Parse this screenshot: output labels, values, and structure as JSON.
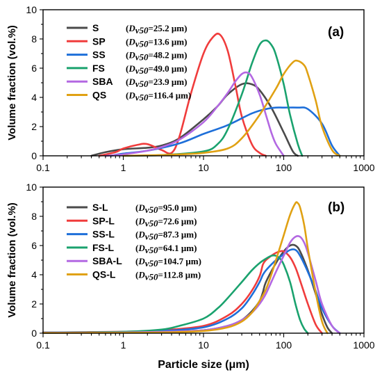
{
  "chart_data": [
    {
      "type": "line",
      "panel_label": "(a)",
      "xscale": "log",
      "xlim": [
        0.1,
        1000
      ],
      "ylim": [
        0,
        10
      ],
      "xticks": [
        "0.1",
        "1",
        "10",
        "100",
        "1000"
      ],
      "yticks": [
        "0",
        "2",
        "4",
        "6",
        "8",
        "10"
      ],
      "ylabel": "Volume fraction (vol.%)",
      "xlabel": "",
      "legend_position": "top-left",
      "series": [
        {
          "name": "S",
          "d50_label": "D",
          "d50_sub": "v50",
          "d50_value": "=25.2 μm",
          "color": "#4a4a4a",
          "x": [
            0.4,
            0.6,
            1,
            2,
            3,
            5,
            10,
            15,
            20,
            30,
            40,
            50,
            70,
            100,
            130,
            150
          ],
          "y": [
            0,
            0.25,
            0.45,
            0.55,
            0.7,
            1.2,
            2.5,
            3.4,
            4.2,
            4.9,
            4.9,
            4.5,
            3.3,
            1.6,
            0.3,
            0
          ]
        },
        {
          "name": "SP",
          "d50_label": "D",
          "d50_sub": "v50",
          "d50_value": "=13.6 μm",
          "color": "#f03c3c",
          "x": [
            0.5,
            0.8,
            1,
            1.5,
            2,
            3,
            4,
            5,
            7,
            10,
            13,
            16,
            20,
            25,
            30,
            40,
            50,
            60
          ],
          "y": [
            0,
            0.25,
            0.5,
            0.75,
            0.8,
            0.4,
            0.2,
            1.3,
            4.3,
            7.0,
            8.1,
            8.3,
            7.2,
            4.8,
            2.7,
            0.8,
            0.2,
            0
          ]
        },
        {
          "name": "SS",
          "d50_label": "D",
          "d50_sub": "v50",
          "d50_value": "=48.2 μm",
          "color": "#1e6fd9",
          "x": [
            0.7,
            1,
            2,
            5,
            10,
            20,
            40,
            60,
            80,
            100,
            150,
            200,
            300,
            400,
            500
          ],
          "y": [
            0,
            0.15,
            0.35,
            0.85,
            1.5,
            2.1,
            2.9,
            3.2,
            3.3,
            3.3,
            3.3,
            3.2,
            2.2,
            0.7,
            0
          ]
        },
        {
          "name": "FS",
          "d50_label": "D",
          "d50_sub": "v50",
          "d50_value": "=49.0 μm",
          "color": "#1aa26e",
          "x": [
            1,
            3,
            10,
            15,
            20,
            30,
            40,
            50,
            60,
            70,
            80,
            100,
            120,
            150,
            170
          ],
          "y": [
            0,
            0.05,
            0.3,
            0.8,
            1.8,
            4.2,
            6.3,
            7.6,
            7.9,
            7.6,
            6.9,
            4.9,
            2.8,
            0.8,
            0
          ]
        },
        {
          "name": "SBA",
          "d50_label": "D",
          "d50_sub": "v50",
          "d50_value": "=23.9 μm",
          "color": "#b368e2",
          "x": [
            0.6,
            1,
            2,
            3,
            5,
            10,
            15,
            20,
            25,
            30,
            35,
            40,
            50,
            60,
            70,
            80,
            100
          ],
          "y": [
            0,
            0.1,
            0.35,
            0.6,
            1.1,
            2.3,
            3.4,
            4.3,
            5.1,
            5.6,
            5.7,
            5.4,
            4.2,
            2.8,
            1.6,
            0.8,
            0
          ]
        },
        {
          "name": "QS",
          "d50_label": "D",
          "d50_sub": "v50",
          "d50_value": "=116.4 μm",
          "color": "#e0a113",
          "x": [
            1,
            3,
            5,
            10,
            20,
            30,
            50,
            80,
            100,
            130,
            150,
            180,
            200,
            250,
            300,
            400,
            500
          ],
          "y": [
            0,
            0.05,
            0.1,
            0.2,
            0.5,
            1.2,
            2.8,
            4.6,
            5.6,
            6.4,
            6.5,
            6.2,
            5.6,
            3.8,
            2.0,
            0.4,
            0
          ]
        }
      ]
    },
    {
      "type": "line",
      "panel_label": "(b)",
      "xscale": "log",
      "xlim": [
        0.1,
        1000
      ],
      "ylim": [
        0,
        10
      ],
      "xticks": [
        "0.1",
        "1",
        "10",
        "100",
        "1000"
      ],
      "yticks": [
        "0",
        "2",
        "4",
        "6",
        "8",
        "10"
      ],
      "ylabel": "Volume fraction (vol.%)",
      "xlabel": "Particle size (μm)",
      "legend_position": "top-left",
      "series": [
        {
          "name": "S-L",
          "d50_label": "D",
          "d50_sub": "v50",
          "d50_value": "=95.0 μm",
          "color": "#4a4a4a",
          "x": [
            0.1,
            1,
            3,
            10,
            20,
            30,
            40,
            50,
            55,
            60,
            80,
            100,
            120,
            140,
            160,
            200,
            250,
            300,
            350,
            400
          ],
          "y": [
            0.05,
            0.08,
            0.1,
            0.2,
            0.5,
            0.9,
            1.5,
            2.2,
            2.8,
            3.5,
            4.8,
            5.6,
            6.0,
            6.0,
            5.6,
            4.3,
            2.7,
            1.3,
            0.4,
            0
          ]
        },
        {
          "name": "SP-L",
          "d50_label": "D",
          "d50_sub": "v50",
          "d50_value": "=72.6 μm",
          "color": "#f03c3c",
          "x": [
            0.1,
            1,
            3,
            10,
            20,
            30,
            40,
            50,
            55,
            60,
            70,
            80,
            90,
            100,
            120,
            140,
            160,
            200,
            250,
            300
          ],
          "y": [
            0.05,
            0.1,
            0.2,
            0.5,
            1.2,
            2.0,
            2.9,
            3.9,
            4.7,
            5.0,
            5.3,
            5.5,
            5.6,
            5.6,
            5.2,
            4.5,
            3.6,
            2.0,
            0.6,
            0
          ]
        },
        {
          "name": "SS-L",
          "d50_label": "D",
          "d50_sub": "v50",
          "d50_value": "=87.3 μm",
          "color": "#1e6fd9",
          "x": [
            0.1,
            1,
            3,
            10,
            20,
            30,
            40,
            50,
            55,
            60,
            70,
            80,
            100,
            120,
            140,
            160,
            200,
            250,
            300,
            400,
            500
          ],
          "y": [
            0.05,
            0.08,
            0.15,
            0.4,
            1.0,
            1.7,
            2.6,
            3.5,
            4.0,
            4.3,
            4.7,
            5.0,
            5.4,
            5.7,
            5.7,
            5.3,
            4.2,
            2.9,
            1.7,
            0.5,
            0
          ]
        },
        {
          "name": "FS-L",
          "d50_label": "D",
          "d50_sub": "v50",
          "d50_value": "=64.1 μm",
          "color": "#1aa26e",
          "x": [
            0.1,
            1,
            3,
            5,
            10,
            15,
            20,
            30,
            40,
            50,
            60,
            70,
            80,
            90,
            100,
            120,
            140,
            160,
            180,
            200
          ],
          "y": [
            0.02,
            0.1,
            0.25,
            0.5,
            1.0,
            1.7,
            2.4,
            3.5,
            4.3,
            4.8,
            5.1,
            5.3,
            5.3,
            5.1,
            4.7,
            3.5,
            2.0,
            0.9,
            0.3,
            0
          ]
        },
        {
          "name": "SBA-L",
          "d50_label": "D",
          "d50_sub": "v50",
          "d50_value": "=104.7 μm",
          "color": "#b368e2",
          "x": [
            0.1,
            1,
            3,
            10,
            20,
            30,
            40,
            50,
            60,
            80,
            100,
            120,
            140,
            160,
            180,
            200,
            250,
            300,
            400,
            500
          ],
          "y": [
            0.03,
            0.05,
            0.1,
            0.2,
            0.5,
            0.9,
            1.4,
            2.0,
            2.7,
            4.2,
            5.3,
            6.2,
            6.6,
            6.6,
            6.2,
            5.5,
            3.6,
            2.0,
            0.5,
            0
          ]
        },
        {
          "name": "QS-L",
          "d50_label": "D",
          "d50_sub": "v50",
          "d50_value": "=112.8 μm",
          "color": "#e0a113",
          "x": [
            0.1,
            1,
            3,
            10,
            20,
            30,
            40,
            50,
            60,
            70,
            80,
            100,
            120,
            140,
            150,
            160,
            180,
            200,
            250,
            300,
            350
          ],
          "y": [
            0.02,
            0.03,
            0.05,
            0.15,
            0.4,
            0.8,
            1.4,
            2.2,
            3.0,
            4.0,
            5.0,
            6.7,
            8.1,
            8.9,
            8.9,
            8.6,
            7.4,
            5.8,
            2.8,
            0.8,
            0
          ]
        }
      ]
    }
  ]
}
